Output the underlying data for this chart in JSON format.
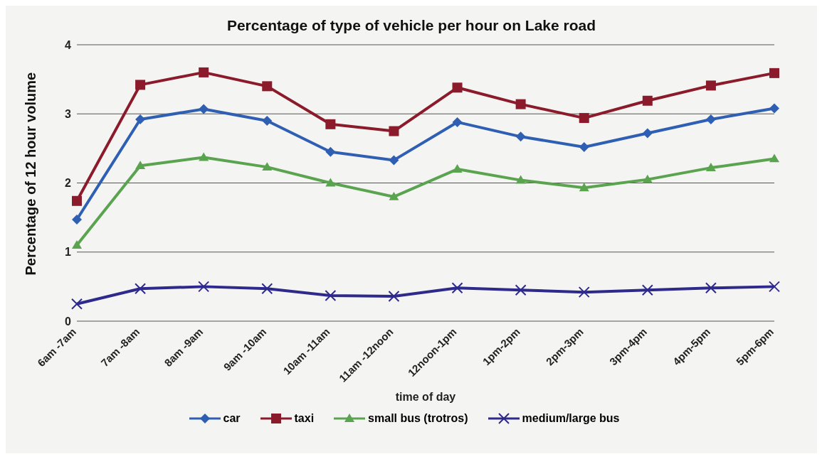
{
  "chart_data": {
    "type": "line",
    "title": "Percentage of type of vehicle per hour on Lake road",
    "xlabel": "time of day",
    "ylabel": "Percentage of 12 hour volume",
    "categories": [
      "6am -7am",
      "7am -8am",
      "8am -9am",
      "9am -10am",
      "10am -11am",
      "11am -12noon",
      "12noon-1pm",
      "1pm-2pm",
      "2pm-3pm",
      "3pm-4pm",
      "4pm-5pm",
      "5pm-6pm"
    ],
    "series": [
      {
        "name": "car",
        "color": "#2f5fb3",
        "marker": "diamond",
        "values": [
          1.47,
          2.92,
          3.07,
          2.9,
          2.45,
          2.33,
          2.88,
          2.67,
          2.52,
          2.72,
          2.92,
          3.08
        ]
      },
      {
        "name": "taxi",
        "color": "#8b1a2b",
        "marker": "square",
        "values": [
          1.74,
          3.42,
          3.6,
          3.4,
          2.85,
          2.75,
          3.38,
          3.14,
          2.94,
          3.19,
          3.41,
          3.59
        ]
      },
      {
        "name": "small bus (trotros)",
        "color": "#5aa34f",
        "marker": "triangle",
        "values": [
          1.1,
          2.25,
          2.37,
          2.23,
          2.0,
          1.8,
          2.2,
          2.04,
          1.93,
          2.05,
          2.22,
          2.35
        ]
      },
      {
        "name": "medium/large bus",
        "color": "#2e2a8c",
        "marker": "cross",
        "values": [
          0.25,
          0.47,
          0.5,
          0.47,
          0.37,
          0.36,
          0.48,
          0.45,
          0.42,
          0.45,
          0.48,
          0.5
        ]
      }
    ],
    "ylim": [
      0,
      4
    ],
    "yticks": [
      0,
      1,
      2,
      3,
      4
    ],
    "grid": "y",
    "legend": "bottom"
  }
}
